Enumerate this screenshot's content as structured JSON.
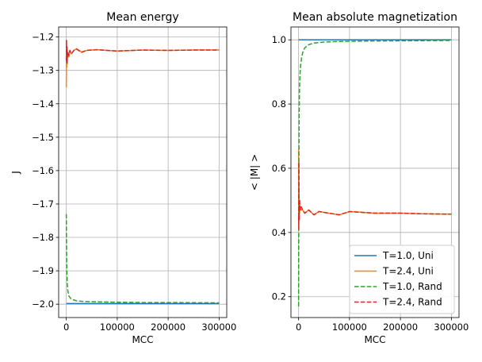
{
  "chart_data": [
    {
      "type": "line",
      "title": "Mean energy",
      "xlabel": "MCC",
      "ylabel": "J",
      "xlim": [
        -15000,
        315000
      ],
      "ylim": [
        -2.04,
        -1.17
      ],
      "xticks": [
        0,
        100000,
        200000,
        300000
      ],
      "xtick_labels": [
        "0",
        "100000",
        "200000",
        "300000"
      ],
      "yticks": [
        -2.0,
        -1.9,
        -1.8,
        -1.7,
        -1.6,
        -1.5,
        -1.4,
        -1.3,
        -1.2
      ],
      "ytick_labels": [
        "−2.0",
        "−1.9",
        "−1.8",
        "−1.7",
        "−1.6",
        "−1.5",
        "−1.4",
        "−1.3",
        "−1.2"
      ],
      "grid": true,
      "series": [
        {
          "name": "T=1.0, Uni",
          "color": "#1f77b4",
          "dash": "solid",
          "x": [
            0,
            300000
          ],
          "y": [
            -1.998,
            -1.998
          ]
        },
        {
          "name": "T=2.4, Uni",
          "color": "#ff7f0e",
          "dash": "solid",
          "x": [
            0,
            300,
            700,
            1200,
            2000,
            3000,
            5000,
            7000,
            10000,
            15000,
            20000,
            30000,
            40000,
            60000,
            80000,
            100000,
            150000,
            200000,
            250000,
            300000
          ],
          "y": [
            -1.35,
            -1.21,
            -1.29,
            -1.24,
            -1.28,
            -1.25,
            -1.26,
            -1.245,
            -1.25,
            -1.24,
            -1.235,
            -1.245,
            -1.24,
            -1.238,
            -1.24,
            -1.242,
            -1.239,
            -1.24,
            -1.239,
            -1.239
          ]
        },
        {
          "name": "T=1.0, Rand",
          "color": "#2ca02c",
          "dash": "dashed",
          "x": [
            0,
            500,
            1000,
            2000,
            3000,
            5000,
            8000,
            12000,
            20000,
            35000,
            60000,
            100000,
            150000,
            200000,
            300000
          ],
          "y": [
            -1.73,
            -1.85,
            -1.9,
            -1.94,
            -1.96,
            -1.975,
            -1.982,
            -1.986,
            -1.99,
            -1.992,
            -1.993,
            -1.994,
            -1.995,
            -1.995,
            -1.996
          ]
        },
        {
          "name": "T=2.4, Rand",
          "color": "#d62728",
          "dash": "dashed",
          "x": [
            0,
            300,
            600,
            1000,
            1500,
            2000,
            3000,
            5000,
            7000,
            10000,
            15000,
            20000,
            30000,
            40000,
            60000,
            80000,
            100000,
            150000,
            200000,
            250000,
            300000
          ],
          "y": [
            -1.27,
            -1.21,
            -1.25,
            -1.28,
            -1.23,
            -1.26,
            -1.245,
            -1.255,
            -1.24,
            -1.25,
            -1.24,
            -1.236,
            -1.246,
            -1.24,
            -1.238,
            -1.24,
            -1.242,
            -1.239,
            -1.24,
            -1.239,
            -1.239
          ]
        }
      ]
    },
    {
      "type": "line",
      "title": "Mean absolute magnetization",
      "xlabel": "MCC",
      "ylabel": "< |M| >",
      "xlim": [
        -15000,
        315000
      ],
      "ylim": [
        0.135,
        1.04
      ],
      "xticks": [
        0,
        100000,
        200000,
        300000
      ],
      "xtick_labels": [
        "0",
        "100000",
        "200000",
        "300000"
      ],
      "yticks": [
        0.2,
        0.4,
        0.6,
        0.8,
        1.0
      ],
      "ytick_labels": [
        "0.2",
        "0.4",
        "0.6",
        "0.8",
        "1.0"
      ],
      "grid": true,
      "legend": {
        "placement": "lower-right"
      },
      "series": [
        {
          "name": "T=1.0, Uni",
          "color": "#1f77b4",
          "dash": "solid",
          "x": [
            0,
            300000
          ],
          "y": [
            1.0,
            1.0
          ]
        },
        {
          "name": "T=2.4, Uni",
          "color": "#ff7f0e",
          "dash": "solid",
          "x": [
            0,
            300,
            600,
            1000,
            1500,
            2000,
            3000,
            5000,
            8000,
            12000,
            20000,
            30000,
            40000,
            60000,
            80000,
            100000,
            150000,
            200000,
            250000,
            300000
          ],
          "y": [
            0.66,
            0.42,
            0.55,
            0.46,
            0.5,
            0.47,
            0.48,
            0.47,
            0.47,
            0.46,
            0.47,
            0.455,
            0.465,
            0.46,
            0.455,
            0.465,
            0.46,
            0.46,
            0.458,
            0.457
          ]
        },
        {
          "name": "T=1.0, Rand",
          "color": "#2ca02c",
          "dash": "dashed",
          "x": [
            0,
            300,
            600,
            1000,
            1500,
            2000,
            3000,
            4000,
            6000,
            8000,
            12000,
            20000,
            30000,
            50000,
            80000,
            120000,
            200000,
            300000
          ],
          "y": [
            0.17,
            0.4,
            0.6,
            0.74,
            0.82,
            0.86,
            0.9,
            0.92,
            0.945,
            0.96,
            0.975,
            0.985,
            0.99,
            0.993,
            0.995,
            0.996,
            0.997,
            0.998
          ]
        },
        {
          "name": "T=2.4, Rand",
          "color": "#d62728",
          "dash": "dashed",
          "x": [
            0,
            300,
            600,
            1000,
            1500,
            2000,
            3000,
            5000,
            8000,
            12000,
            20000,
            30000,
            40000,
            60000,
            80000,
            100000,
            150000,
            200000,
            250000,
            300000
          ],
          "y": [
            0.45,
            0.41,
            0.62,
            0.48,
            0.44,
            0.5,
            0.47,
            0.48,
            0.47,
            0.46,
            0.47,
            0.455,
            0.465,
            0.46,
            0.455,
            0.465,
            0.46,
            0.46,
            0.458,
            0.457
          ]
        }
      ]
    }
  ]
}
